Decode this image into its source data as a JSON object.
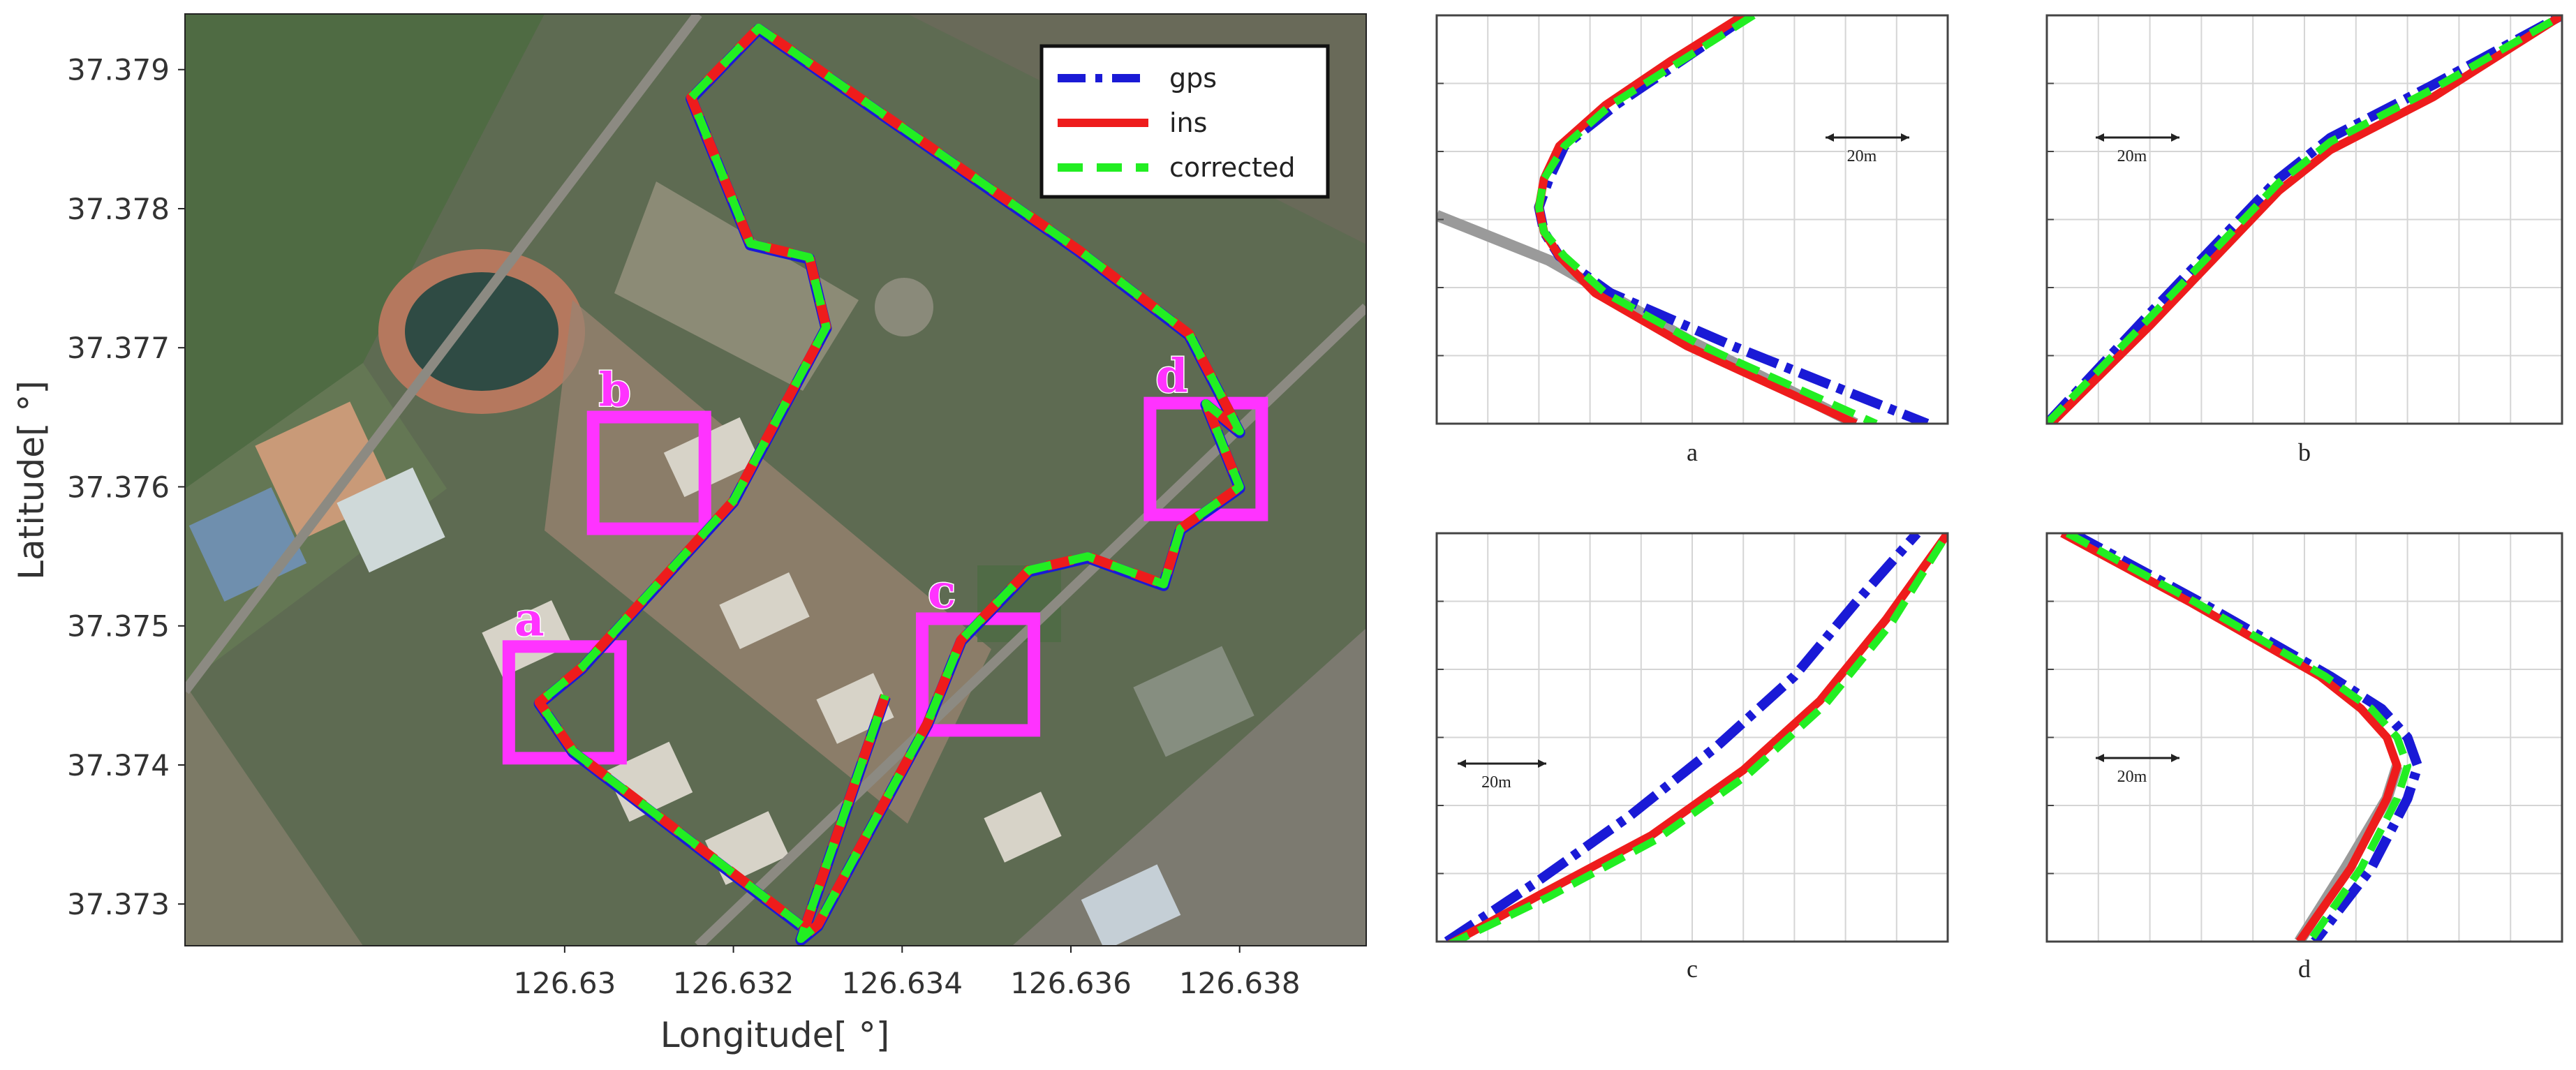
{
  "colors": {
    "gps": "#1a1ad6",
    "ins": "#ee1c1c",
    "corrected": "#22ee22",
    "zone_box": "#ff33ff",
    "reference": "#9a9a9a"
  },
  "chart_data": [
    {
      "type": "line",
      "panel": "map",
      "background": "satellite image",
      "xlabel": "Longitude[ °]",
      "ylabel": "Latitude[ °]",
      "xlim": [
        126.6255,
        126.6395
      ],
      "ylim": [
        37.3727,
        37.3794
      ],
      "xticks": [
        126.63,
        126.632,
        126.634,
        126.636,
        126.638
      ],
      "xtick_labels": [
        "126.63",
        "126.632",
        "126.634",
        "126.636",
        "126.638"
      ],
      "yticks": [
        37.373,
        37.374,
        37.375,
        37.376,
        37.377,
        37.378,
        37.379
      ],
      "ytick_labels": [
        "37.373",
        "37.374",
        "37.375",
        "37.376",
        "37.377",
        "37.378",
        "37.379"
      ],
      "legend": {
        "position": "top-right",
        "entries": [
          "gps",
          "ins",
          "corrected"
        ]
      },
      "route": {
        "lon": [
          126.6338,
          126.6328,
          126.633,
          126.6343,
          126.6347,
          126.6355,
          126.6362,
          126.6371,
          126.6373,
          126.638,
          126.6376,
          126.638,
          126.6374,
          126.6361,
          126.6323,
          126.6315,
          126.6322,
          126.6329,
          126.6331,
          126.632,
          126.6302,
          126.6297,
          126.6301,
          126.6328
        ],
        "lat": [
          37.3745,
          37.37275,
          37.37285,
          37.3743,
          37.3749,
          37.3754,
          37.3755,
          37.3753,
          37.3757,
          37.376,
          37.3766,
          37.3764,
          37.3771,
          37.3777,
          37.3793,
          37.3788,
          37.37775,
          37.37765,
          37.37715,
          37.3759,
          37.3747,
          37.37445,
          37.3741,
          37.37285
        ]
      },
      "zones": [
        {
          "label": "a",
          "center_lon": 126.63,
          "center_lat": 37.37445
        },
        {
          "label": "b",
          "center_lon": 126.631,
          "center_lat": 37.3761
        },
        {
          "label": "c",
          "center_lon": 126.6349,
          "center_lat": 37.37465
        },
        {
          "label": "d",
          "center_lon": 126.6376,
          "center_lat": 37.3762
        }
      ]
    },
    {
      "type": "line",
      "panel": "a",
      "title": "a",
      "scale_bar": "20m",
      "x": [
        0,
        10,
        20,
        30,
        40,
        50,
        60,
        70,
        80,
        90,
        100
      ],
      "xlim": [
        0,
        100
      ],
      "ylim": [
        0,
        100
      ],
      "grid": true,
      "series": [
        {
          "name": "gps",
          "x": [
            61,
            48,
            35,
            25,
            22,
            20,
            21,
            24,
            34,
            58,
            96
          ],
          "y": [
            100,
            89,
            78,
            68,
            60,
            53,
            47,
            41,
            32,
            19,
            0
          ]
        },
        {
          "name": "ins",
          "x": [
            60,
            46,
            33,
            24,
            21,
            20,
            21,
            24,
            31,
            49,
            82
          ],
          "y": [
            100,
            89,
            78,
            68,
            60,
            53,
            47,
            41,
            32,
            19,
            0
          ]
        },
        {
          "name": "corrected",
          "x": [
            62,
            48,
            34,
            25,
            21,
            20,
            21,
            25,
            33,
            52,
            86
          ],
          "y": [
            100,
            89,
            78,
            68,
            60,
            53,
            47,
            41,
            32,
            19,
            0
          ]
        }
      ],
      "reference": {
        "x": [
          0,
          22,
          50,
          82
        ],
        "y": [
          51,
          40,
          20,
          0
        ]
      }
    },
    {
      "type": "line",
      "panel": "b",
      "title": "b",
      "scale_bar": "20m",
      "xlim": [
        0,
        100
      ],
      "ylim": [
        0,
        100
      ],
      "grid": true,
      "series": [
        {
          "name": "gps",
          "x": [
            0,
            20,
            45,
            55,
            75,
            100
          ],
          "y": [
            0,
            27,
            60,
            70,
            83,
            100
          ]
        },
        {
          "name": "ins",
          "x": [
            0,
            20,
            45,
            55,
            75,
            100
          ],
          "y": [
            -1,
            24,
            57,
            67,
            80,
            100
          ]
        },
        {
          "name": "corrected",
          "x": [
            0,
            20,
            45,
            55,
            75,
            100
          ],
          "y": [
            0,
            26,
            59,
            69,
            82,
            100
          ]
        }
      ]
    },
    {
      "type": "line",
      "panel": "c",
      "title": "c",
      "scale_bar": "20m",
      "xlim": [
        0,
        100
      ],
      "ylim": [
        0,
        100
      ],
      "grid": true,
      "series": [
        {
          "name": "gps",
          "x": [
            2,
            20,
            38,
            55,
            70,
            82,
            94
          ],
          "y": [
            0,
            15,
            31,
            48,
            65,
            83,
            100
          ]
        },
        {
          "name": "ins",
          "x": [
            2,
            21,
            42,
            60,
            75,
            88,
            100
          ],
          "y": [
            -1,
            12,
            26,
            42,
            59,
            79,
            100
          ]
        },
        {
          "name": "corrected",
          "x": [
            2,
            22,
            43,
            61,
            76,
            89,
            100
          ],
          "y": [
            -1,
            11,
            25,
            41,
            58,
            78,
            100
          ]
        }
      ]
    },
    {
      "type": "line",
      "panel": "d",
      "title": "d",
      "scale_bar": "20m",
      "xlim": [
        0,
        100
      ],
      "ylim": [
        0,
        100
      ],
      "grid": true,
      "series": [
        {
          "name": "gps",
          "x": [
            5,
            30,
            55,
            65,
            70,
            72,
            70,
            63,
            52
          ],
          "y": [
            100,
            83,
            65,
            57,
            50,
            43,
            35,
            18,
            0
          ]
        },
        {
          "name": "ins",
          "x": [
            3,
            28,
            53,
            61,
            66,
            68,
            66,
            59,
            49
          ],
          "y": [
            100,
            83,
            65,
            57,
            50,
            43,
            35,
            18,
            0
          ]
        },
        {
          "name": "corrected",
          "x": [
            4,
            29,
            54,
            63,
            68,
            70,
            68,
            61,
            51
          ],
          "y": [
            100,
            83,
            65,
            57,
            50,
            43,
            35,
            18,
            0
          ]
        }
      ],
      "reference": {
        "x": [
          49,
          58,
          66,
          68
        ],
        "y": [
          0,
          18,
          35,
          43
        ]
      }
    }
  ]
}
